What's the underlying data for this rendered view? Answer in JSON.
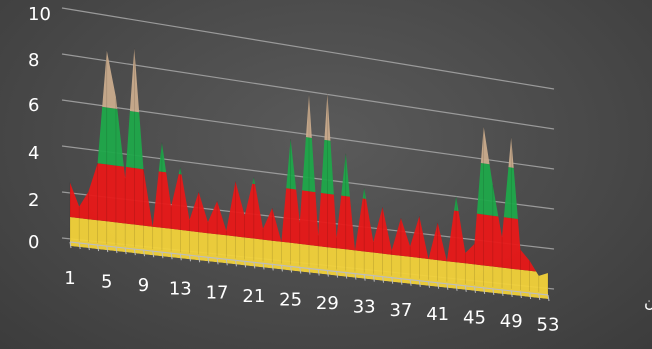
{
  "chart_data": {
    "type": "area",
    "view": "3d-perspective",
    "y_ticks": [
      "0",
      "2",
      "4",
      "6",
      "8",
      "10"
    ],
    "ylim": [
      0,
      10
    ],
    "x_tick_labels": [
      "1",
      "5",
      "9",
      "13",
      "17",
      "21",
      "25",
      "29",
      "33",
      "37",
      "41",
      "45",
      "49",
      "53"
    ],
    "x_title": "من اليمين",
    "grid": true,
    "colors": {
      "yellow": "#f2d23a",
      "red": "#e81818",
      "green": "#1fa84a",
      "tan": "#c9ab8c",
      "grid": "#9a9a9a",
      "text": "#ffffff"
    },
    "x": [
      1,
      2,
      3,
      4,
      5,
      6,
      7,
      8,
      9,
      10,
      11,
      12,
      13,
      14,
      15,
      16,
      17,
      18,
      19,
      20,
      21,
      22,
      23,
      24,
      25,
      26,
      27,
      28,
      29,
      30,
      31,
      32,
      33,
      34,
      35,
      36,
      37,
      38,
      39,
      40,
      41,
      42,
      43,
      44,
      45,
      46,
      47,
      48,
      49,
      50,
      51,
      52,
      53
    ],
    "values": [
      2.5,
      1.5,
      2.2,
      3.5,
      8.5,
      6.5,
      3.0,
      8.8,
      3.5,
      1.0,
      4.8,
      2.0,
      3.8,
      1.5,
      2.8,
      1.5,
      2.5,
      1.2,
      3.5,
      2.0,
      3.8,
      1.5,
      2.5,
      1.0,
      5.8,
      2.0,
      8.0,
      1.5,
      8.2,
      1.5,
      5.5,
      1.0,
      4.0,
      1.5,
      3.2,
      1.2,
      2.8,
      1.5,
      3.0,
      1.0,
      2.8,
      1.0,
      4.2,
      1.5,
      2.0,
      7.8,
      5.0,
      2.5,
      7.5,
      2.0,
      1.5,
      0.8,
      1.0
    ],
    "bands": [
      {
        "from": 0,
        "to": 1,
        "color_key": "yellow"
      },
      {
        "from": 1,
        "to": 3.5,
        "color_key": "red"
      },
      {
        "from": 3.5,
        "to": 6,
        "color_key": "green"
      },
      {
        "from": 6,
        "to": 10,
        "color_key": "tan"
      }
    ]
  }
}
